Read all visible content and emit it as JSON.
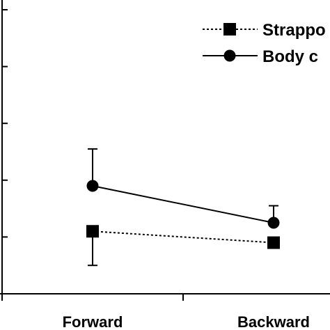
{
  "chart_data": {
    "type": "line",
    "categories": [
      "Forward",
      "Backward"
    ],
    "series": [
      {
        "name": "Strappo",
        "values": [
          1.1,
          0.9
        ],
        "error_minus": [
          0.6,
          0
        ],
        "error_plus": [
          0,
          0
        ],
        "line_style": "dotted",
        "marker": "square"
      },
      {
        "name": "Body c",
        "values": [
          1.9,
          1.25
        ],
        "error_minus": [
          0,
          0
        ],
        "error_plus": [
          0.65,
          0.3
        ],
        "line_style": "solid",
        "marker": "circle"
      }
    ],
    "ylim": [
      0,
      5
    ],
    "y_ticks": [
      0,
      1,
      2,
      3,
      4,
      5
    ],
    "grid": false,
    "legend": "top-right",
    "title": "",
    "xlabel": "",
    "ylabel": "",
    "colors": {
      "ink": "#000000",
      "background": "#ffffff"
    }
  }
}
